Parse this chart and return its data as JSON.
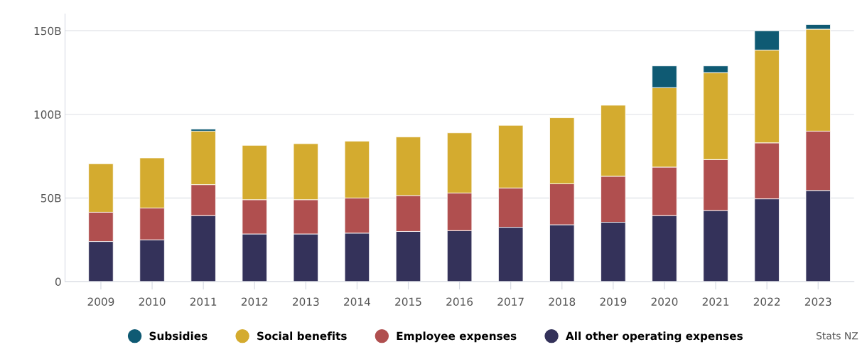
{
  "chart_data": {
    "type": "bar",
    "stacked": true,
    "categories": [
      "2009",
      "2010",
      "2011",
      "2012",
      "2013",
      "2014",
      "2015",
      "2016",
      "2017",
      "2018",
      "2019",
      "2020",
      "2021",
      "2022",
      "2023"
    ],
    "series": [
      {
        "name": "All other operating expenses",
        "color": "#34325a",
        "values": [
          24,
          25,
          39.5,
          28.5,
          28.5,
          29,
          30,
          30.5,
          32.5,
          34,
          35.5,
          39.5,
          42.5,
          49.5,
          54.5
        ]
      },
      {
        "name": "Employee expenses",
        "color": "#b04f4f",
        "values": [
          17.5,
          19,
          18.5,
          20.5,
          20.5,
          21,
          21.5,
          22.5,
          23.5,
          24.5,
          27.5,
          29,
          30.5,
          33.5,
          35.5
        ]
      },
      {
        "name": "Social benefits",
        "color": "#d4ab2f",
        "values": [
          29,
          30,
          32,
          32.5,
          33.5,
          34,
          35,
          36,
          37.5,
          39.5,
          42.5,
          47.5,
          52,
          55.5,
          61
        ]
      },
      {
        "name": "Subsidies",
        "color": "#0f5a73",
        "values": [
          null,
          null,
          1.2,
          null,
          null,
          null,
          null,
          null,
          null,
          null,
          null,
          13,
          4,
          11.5,
          2.8
        ]
      }
    ],
    "ylim": [
      0,
      160
    ],
    "yticks": [
      0,
      {
        "value": 50,
        "label": "50B"
      },
      {
        "value": 100,
        "label": "100B"
      },
      {
        "value": 150,
        "label": "150B"
      }
    ],
    "grid": "y",
    "legend": "bottom",
    "marker": "circle",
    "annotations": [
      "Stats NZ"
    ]
  }
}
